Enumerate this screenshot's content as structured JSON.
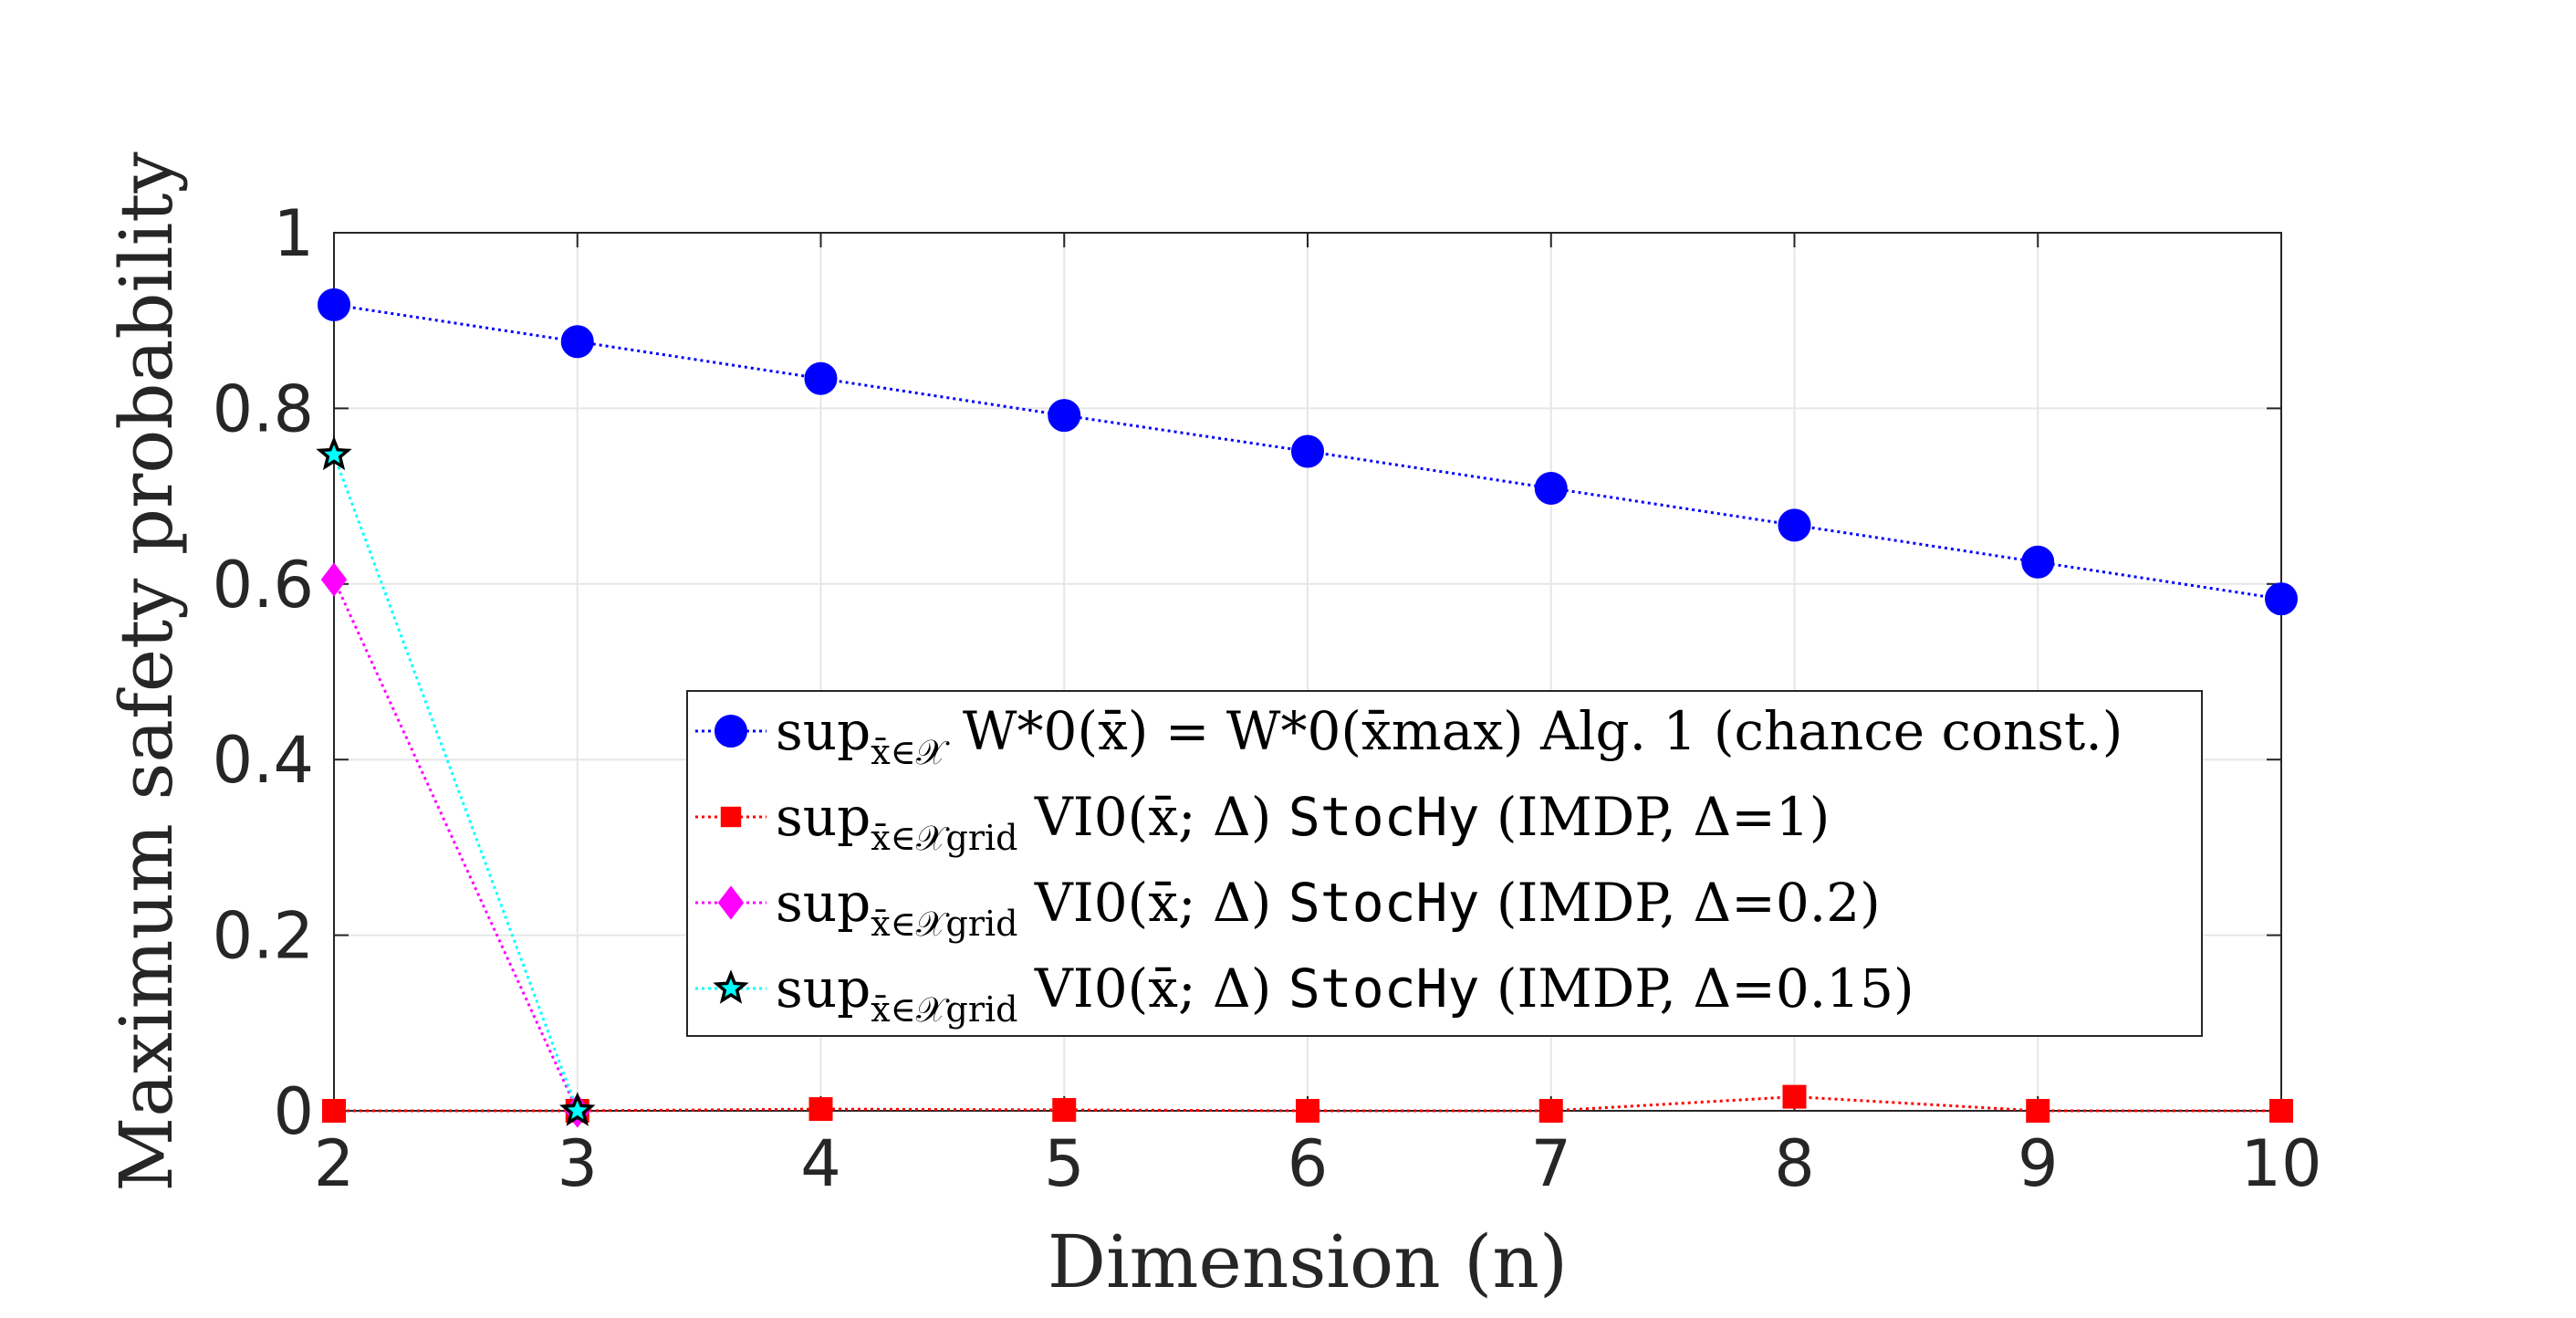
{
  "chart_data": {
    "type": "line",
    "title": "",
    "xlabel": "Dimension (n)",
    "ylabel": "Maximum safety probability",
    "xlim": [
      2,
      10
    ],
    "ylim": [
      0,
      1
    ],
    "xticks": [
      "2",
      "3",
      "4",
      "5",
      "6",
      "7",
      "8",
      "9",
      "10"
    ],
    "yticks": [
      "0",
      "0.2",
      "0.4",
      "0.6",
      "0.8",
      "1"
    ],
    "grid": true,
    "legend_position": "center-right",
    "series": [
      {
        "name": "sup_{x̄∈𝒳} W*_0(x̄) = W*_0(x̄_max) Alg. 1 (chance const.)",
        "legend": {
          "pre": "sup",
          "sub": "x̄∈𝒳",
          "mid": " W*0(x̄) = W*0(x̄max) Alg. 1 (chance const.)",
          "mono": "",
          "post": ""
        },
        "color": "#0000ff",
        "marker": "circle",
        "x": [
          2,
          3,
          4,
          5,
          6,
          7,
          8,
          9,
          10
        ],
        "y": [
          0.918,
          0.876,
          0.834,
          0.792,
          0.751,
          0.709,
          0.667,
          0.625,
          0.583
        ]
      },
      {
        "name": "sup_{x̄∈𝒳grid} V^I_0(x̄;Δ) StocHy (IMDP, Δ=1)",
        "legend": {
          "pre": "sup",
          "sub": "x̄∈𝒳grid",
          "mid": " VI0(x̄; Δ) ",
          "mono": "StocHy",
          "post": " (IMDP, Δ=1)"
        },
        "color": "#ff0000",
        "marker": "square",
        "x": [
          2,
          3,
          4,
          5,
          6,
          7,
          8,
          9,
          10
        ],
        "y": [
          0.0,
          0.0,
          0.002,
          0.001,
          0.0,
          0.0,
          0.016,
          0.0,
          0.0
        ]
      },
      {
        "name": "sup_{x̄∈𝒳grid} V^I_0(x̄;Δ) StocHy (IMDP, Δ=0.2)",
        "legend": {
          "pre": "sup",
          "sub": "x̄∈𝒳grid",
          "mid": " VI0(x̄; Δ) ",
          "mono": "StocHy",
          "post": " (IMDP, Δ=0.2)"
        },
        "color": "#ff00ff",
        "marker": "diamond",
        "x": [
          2,
          3
        ],
        "y": [
          0.605,
          0.0
        ]
      },
      {
        "name": "sup_{x̄∈𝒳grid} V^I_0(x̄;Δ) StocHy (IMDP, Δ=0.15)",
        "legend": {
          "pre": "sup",
          "sub": "x̄∈𝒳grid",
          "mid": " VI0(x̄; Δ) ",
          "mono": "StocHy",
          "post": " (IMDP, Δ=0.15)"
        },
        "color": "#00ffff",
        "marker": "star",
        "x": [
          2,
          3
        ],
        "y": [
          0.747,
          0.0
        ]
      }
    ]
  }
}
